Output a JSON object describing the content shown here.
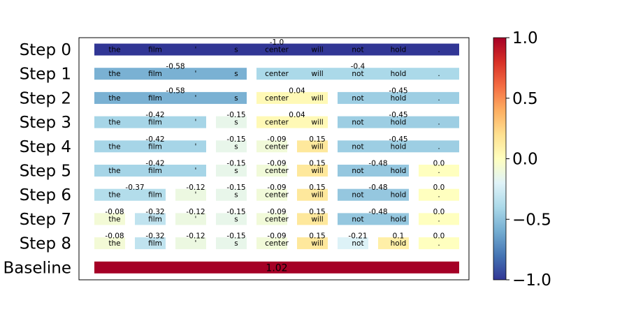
{
  "chart_data": {
    "type": "heatmap",
    "title": "",
    "colormap": "RdYlBu_r",
    "color_range": [
      -1.0,
      1.0
    ],
    "colorbar_ticks": [
      "1.0",
      "0.5",
      "0.0",
      "−0.5",
      "−1.0"
    ],
    "tokens": [
      "the",
      "film",
      "'",
      "s",
      "center",
      "will",
      "not",
      "hold",
      "."
    ],
    "rows": [
      {
        "label": "Step 0",
        "segments": [
          {
            "start": 0,
            "end": 8,
            "value": -1.0,
            "value_label": "-1.0"
          }
        ]
      },
      {
        "label": "Step 1",
        "segments": [
          {
            "start": 0,
            "end": 3,
            "value": -0.58,
            "value_label": "-0.58"
          },
          {
            "start": 4,
            "end": 8,
            "value": -0.4,
            "value_label": "-0.4"
          }
        ]
      },
      {
        "label": "Step 2",
        "segments": [
          {
            "start": 0,
            "end": 3,
            "value": -0.58,
            "value_label": "-0.58"
          },
          {
            "start": 4,
            "end": 5,
            "value": 0.04,
            "value_label": "0.04"
          },
          {
            "start": 6,
            "end": 8,
            "value": -0.45,
            "value_label": "-0.45"
          }
        ]
      },
      {
        "label": "Step 3",
        "segments": [
          {
            "start": 0,
            "end": 2,
            "value": -0.42,
            "value_label": "-0.42"
          },
          {
            "start": 3,
            "end": 3,
            "value": -0.15,
            "value_label": "-0.15"
          },
          {
            "start": 4,
            "end": 5,
            "value": 0.04,
            "value_label": "0.04"
          },
          {
            "start": 6,
            "end": 8,
            "value": -0.45,
            "value_label": "-0.45"
          }
        ]
      },
      {
        "label": "Step 4",
        "segments": [
          {
            "start": 0,
            "end": 2,
            "value": -0.42,
            "value_label": "-0.42"
          },
          {
            "start": 3,
            "end": 3,
            "value": -0.15,
            "value_label": "-0.15"
          },
          {
            "start": 4,
            "end": 4,
            "value": -0.09,
            "value_label": "-0.09"
          },
          {
            "start": 5,
            "end": 5,
            "value": 0.15,
            "value_label": "0.15"
          },
          {
            "start": 6,
            "end": 8,
            "value": -0.45,
            "value_label": "-0.45"
          }
        ]
      },
      {
        "label": "Step 5",
        "segments": [
          {
            "start": 0,
            "end": 2,
            "value": -0.42,
            "value_label": "-0.42"
          },
          {
            "start": 3,
            "end": 3,
            "value": -0.15,
            "value_label": "-0.15"
          },
          {
            "start": 4,
            "end": 4,
            "value": -0.09,
            "value_label": "-0.09"
          },
          {
            "start": 5,
            "end": 5,
            "value": 0.15,
            "value_label": "0.15"
          },
          {
            "start": 6,
            "end": 7,
            "value": -0.48,
            "value_label": "-0.48"
          },
          {
            "start": 8,
            "end": 8,
            "value": 0.0,
            "value_label": "0.0"
          }
        ]
      },
      {
        "label": "Step 6",
        "segments": [
          {
            "start": 0,
            "end": 1,
            "value": -0.37,
            "value_label": "-0.37"
          },
          {
            "start": 2,
            "end": 2,
            "value": -0.12,
            "value_label": "-0.12"
          },
          {
            "start": 3,
            "end": 3,
            "value": -0.15,
            "value_label": "-0.15"
          },
          {
            "start": 4,
            "end": 4,
            "value": -0.09,
            "value_label": "-0.09"
          },
          {
            "start": 5,
            "end": 5,
            "value": 0.15,
            "value_label": "0.15"
          },
          {
            "start": 6,
            "end": 7,
            "value": -0.48,
            "value_label": "-0.48"
          },
          {
            "start": 8,
            "end": 8,
            "value": 0.0,
            "value_label": "0.0"
          }
        ]
      },
      {
        "label": "Step 7",
        "segments": [
          {
            "start": 0,
            "end": 0,
            "value": -0.08,
            "value_label": "-0.08"
          },
          {
            "start": 1,
            "end": 1,
            "value": -0.32,
            "value_label": "-0.32"
          },
          {
            "start": 2,
            "end": 2,
            "value": -0.12,
            "value_label": "-0.12"
          },
          {
            "start": 3,
            "end": 3,
            "value": -0.15,
            "value_label": "-0.15"
          },
          {
            "start": 4,
            "end": 4,
            "value": -0.09,
            "value_label": "-0.09"
          },
          {
            "start": 5,
            "end": 5,
            "value": 0.15,
            "value_label": "0.15"
          },
          {
            "start": 6,
            "end": 7,
            "value": -0.48,
            "value_label": "-0.48"
          },
          {
            "start": 8,
            "end": 8,
            "value": 0.0,
            "value_label": "0.0"
          }
        ]
      },
      {
        "label": "Step 8",
        "segments": [
          {
            "start": 0,
            "end": 0,
            "value": -0.08,
            "value_label": "-0.08"
          },
          {
            "start": 1,
            "end": 1,
            "value": -0.32,
            "value_label": "-0.32"
          },
          {
            "start": 2,
            "end": 2,
            "value": -0.12,
            "value_label": "-0.12"
          },
          {
            "start": 3,
            "end": 3,
            "value": -0.15,
            "value_label": "-0.15"
          },
          {
            "start": 4,
            "end": 4,
            "value": -0.09,
            "value_label": "-0.09"
          },
          {
            "start": 5,
            "end": 5,
            "value": 0.15,
            "value_label": "0.15"
          },
          {
            "start": 6,
            "end": 6,
            "value": -0.21,
            "value_label": "-0.21"
          },
          {
            "start": 7,
            "end": 7,
            "value": 0.1,
            "value_label": "0.1"
          },
          {
            "start": 8,
            "end": 8,
            "value": 0.0,
            "value_label": "0.0"
          }
        ]
      }
    ],
    "baseline": {
      "label": "Baseline",
      "value": 1.02,
      "value_label": "1.02"
    }
  }
}
